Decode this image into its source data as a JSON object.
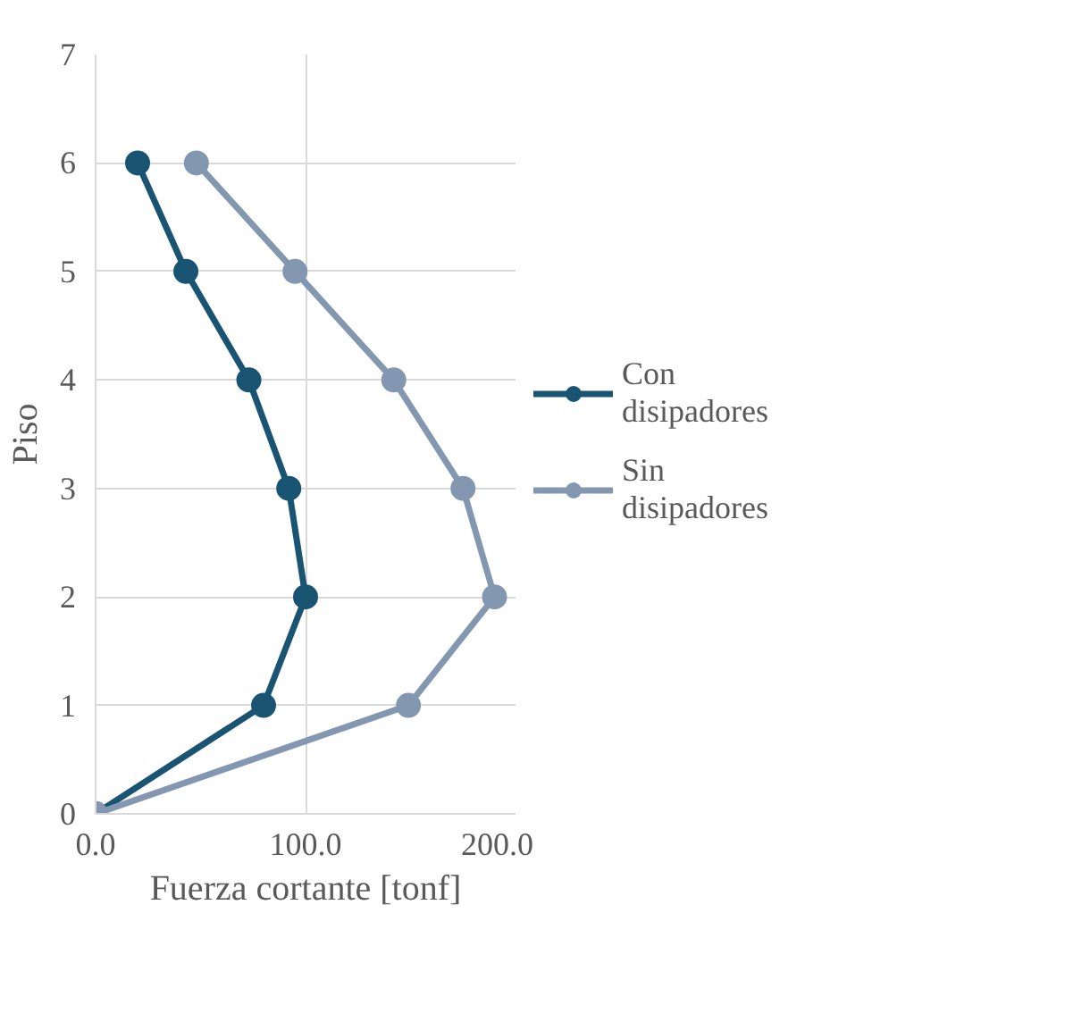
{
  "chart_data": {
    "type": "line",
    "xlabel": "Fuerza cortante [tonf]",
    "ylabel": "Piso",
    "xlim": [
      0,
      200
    ],
    "xticks": [
      {
        "value": 0,
        "label": "0.0"
      },
      {
        "value": 100,
        "label": "100.0"
      },
      {
        "value": 200,
        "label": "200.0"
      }
    ],
    "ylim": [
      0,
      7
    ],
    "yticks": [
      0,
      1,
      2,
      3,
      4,
      5,
      6,
      7
    ],
    "grid": true,
    "legend": "right",
    "marker": "circle",
    "line_style": "solid",
    "series": [
      {
        "name": "Con disipadores",
        "color": "#1a5473",
        "x": [
          0,
          80,
          100,
          92,
          73,
          43,
          20
        ],
        "values": [
          0,
          1,
          2,
          3,
          4,
          5,
          6
        ]
      },
      {
        "name": "Sin disipadores",
        "color": "#8497b0",
        "x": [
          0,
          149,
          190,
          175,
          142,
          95,
          48
        ],
        "values": [
          0,
          1,
          2,
          3,
          4,
          5,
          6
        ]
      }
    ]
  }
}
